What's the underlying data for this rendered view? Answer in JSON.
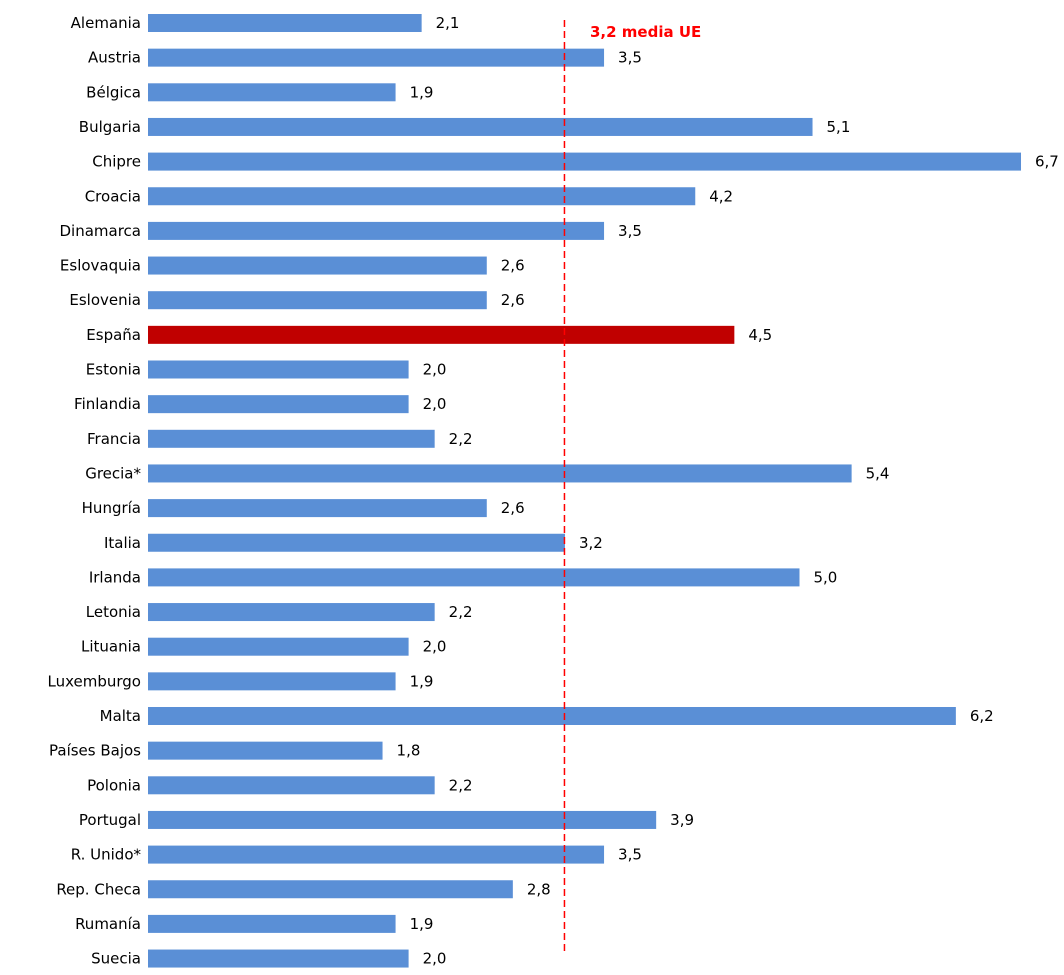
{
  "chart_data": {
    "type": "bar",
    "orientation": "horizontal",
    "categories": [
      "Alemania",
      "Austria",
      "Bélgica",
      "Bulgaria",
      "Chipre",
      "Croacia",
      "Dinamarca",
      "Eslovaquia",
      "Eslovenia",
      "España",
      "Estonia",
      "Finlandia",
      "Francia",
      "Grecia*",
      "Hungría",
      "Italia",
      "Irlanda",
      "Letonia",
      "Lituania",
      "Luxemburgo",
      "Malta",
      "Países Bajos",
      "Polonia",
      "Portugal",
      "R. Unido*",
      "Rep. Checa",
      "Rumanía",
      "Suecia"
    ],
    "values": [
      2.1,
      3.5,
      1.9,
      5.1,
      6.7,
      4.2,
      3.5,
      2.6,
      2.6,
      4.5,
      2.0,
      2.0,
      2.2,
      5.4,
      2.6,
      3.2,
      5.0,
      2.2,
      2.0,
      1.9,
      6.2,
      1.8,
      2.2,
      3.9,
      3.5,
      2.8,
      1.9,
      2.0
    ],
    "value_labels": [
      "2,1",
      "3,5",
      "1,9",
      "5,1",
      "6,7",
      "4,2",
      "3,5",
      "2,6",
      "2,6",
      "4,5",
      "2,0",
      "2,0",
      "2,2",
      "5,4",
      "2,6",
      "3,2",
      "5,0",
      "2,2",
      "2,0",
      "1,9",
      "6,2",
      "1,8",
      "2,2",
      "3,9",
      "3,5",
      "2,8",
      "1,9",
      "2,0"
    ],
    "highlight_category": "España",
    "reference_line": {
      "value": 3.2,
      "label": "3,2  media UE",
      "color": "#ff0000",
      "style": "dashed"
    },
    "xlim": [
      0,
      6.7
    ],
    "grid": false,
    "legend": "none",
    "title": "",
    "xlabel": "",
    "ylabel": "",
    "colors": {
      "bar": "#5a8fd6",
      "highlight": "#c00000",
      "text": "#000000"
    }
  }
}
